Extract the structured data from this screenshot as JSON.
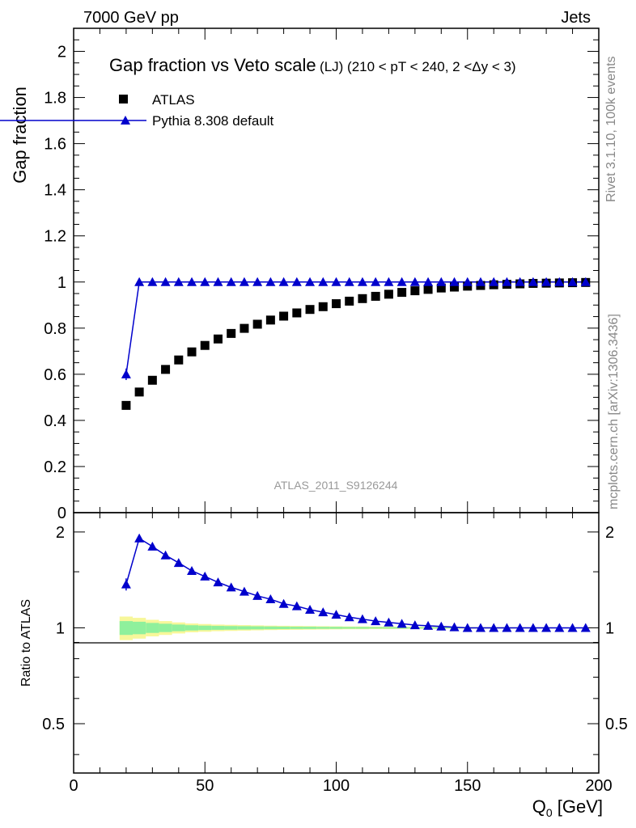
{
  "header": {
    "energy": "7000 GeV pp",
    "process": "Jets"
  },
  "side_labels": {
    "rivet": "Rivet 3.1.10,  100k events",
    "mcplots": "mcplots.cern.ch [arXiv:1306.3436]"
  },
  "chart_data": [
    {
      "type": "scatter",
      "title": "Gap fraction vs Veto scale",
      "subtitle": "(LJ) (210 < pT < 240, 2 <Δy < 3)",
      "analysis_label": "ATLAS_2011_S9126244",
      "ylabel": "Gap fraction",
      "xlim": [
        0,
        200
      ],
      "ylim": [
        0,
        2.1
      ],
      "y_ticks": [
        "0",
        "0.2",
        "0.4",
        "0.6",
        "0.8",
        "1",
        "1.2",
        "1.4",
        "1.6",
        "1.8",
        "2"
      ],
      "legend_position": "top-left",
      "colors": {
        "data": "#000000",
        "mc": "#0000cc"
      },
      "series": [
        {
          "name": "ATLAS",
          "marker": "square",
          "x": [
            20,
            25,
            30,
            35,
            40,
            45,
            50,
            55,
            60,
            65,
            70,
            75,
            80,
            85,
            90,
            95,
            100,
            105,
            110,
            115,
            120,
            125,
            130,
            135,
            140,
            145,
            150,
            155,
            160,
            165,
            170,
            175,
            180,
            185,
            190,
            195
          ],
          "y": [
            0.465,
            0.523,
            0.574,
            0.621,
            0.662,
            0.697,
            0.725,
            0.753,
            0.777,
            0.799,
            0.817,
            0.835,
            0.852,
            0.866,
            0.881,
            0.893,
            0.906,
            0.917,
            0.928,
            0.938,
            0.947,
            0.955,
            0.962,
            0.968,
            0.974,
            0.978,
            0.982,
            0.985,
            0.988,
            0.99,
            0.992,
            0.994,
            0.995,
            0.996,
            0.997,
            0.998
          ]
        },
        {
          "name": "Pythia 8.308 default",
          "marker": "triangle",
          "x": [
            20,
            25,
            30,
            35,
            40,
            45,
            50,
            55,
            60,
            65,
            70,
            75,
            80,
            85,
            90,
            95,
            100,
            105,
            110,
            115,
            120,
            125,
            130,
            135,
            140,
            145,
            150,
            155,
            160,
            165,
            170,
            175,
            180,
            185,
            190,
            195
          ],
          "y": [
            0.6,
            1.0,
            1.0,
            1.0,
            1.0,
            1.0,
            1.0,
            1.0,
            1.0,
            1.0,
            1.0,
            1.0,
            1.0,
            1.0,
            1.0,
            1.0,
            1.0,
            1.0,
            1.0,
            1.0,
            1.0,
            1.0,
            1.0,
            1.0,
            1.0,
            1.0,
            1.0,
            1.0,
            1.0,
            1.0,
            1.0,
            1.0,
            1.0,
            1.0,
            1.0,
            1.0
          ],
          "err": [
            0.025,
            0,
            0,
            0,
            0,
            0,
            0,
            0,
            0,
            0,
            0,
            0,
            0,
            0,
            0,
            0,
            0,
            0,
            0,
            0,
            0,
            0,
            0,
            0,
            0,
            0,
            0,
            0,
            0,
            0,
            0,
            0,
            0,
            0,
            0,
            0
          ]
        }
      ]
    },
    {
      "type": "line",
      "ylabel": "Ratio to ATLAS",
      "xlabel": "Q",
      "xlabel_sub": "0",
      "xlabel_unit": " [GeV]",
      "xlim": [
        0,
        200
      ],
      "ylim": [
        0.35,
        2.3
      ],
      "x_ticks": [
        "0",
        "50",
        "100",
        "150",
        "200"
      ],
      "y_ticks": [
        "0.5",
        "1",
        "2"
      ],
      "band": {
        "x_edges": [
          17.5,
          22.5,
          27.5,
          32.5,
          37.5,
          42.5,
          47.5,
          52.5,
          57.5,
          62.5,
          67.5,
          72.5,
          77.5,
          82.5,
          87.5,
          92.5,
          97.5,
          102.5,
          107.5,
          112.5,
          117.5,
          122.5,
          127.5,
          132.5,
          137.5,
          142.5,
          147.5,
          152.5,
          157.5,
          162.5,
          167.5,
          172.5,
          177.5,
          182.5,
          187.5,
          192.5,
          197.5
        ],
        "outer_rel": [
          0.085,
          0.075,
          0.06,
          0.05,
          0.04,
          0.032,
          0.028,
          0.024,
          0.022,
          0.02,
          0.018,
          0.016,
          0.015,
          0.014,
          0.013,
          0.012,
          0.011,
          0.01,
          0.01,
          0.009,
          0.009,
          0.008,
          0.008,
          0.007,
          0.007,
          0.006,
          0.006,
          0.005,
          0.005,
          0.005,
          0.004,
          0.004,
          0.004,
          0.003,
          0.003,
          0.003
        ],
        "inner_rel": [
          0.05,
          0.045,
          0.036,
          0.03,
          0.024,
          0.019,
          0.016,
          0.014,
          0.013,
          0.012,
          0.011,
          0.01,
          0.009,
          0.008,
          0.008,
          0.007,
          0.007,
          0.006,
          0.006,
          0.005,
          0.005,
          0.005,
          0.004,
          0.004,
          0.004,
          0.004,
          0.003,
          0.003,
          0.003,
          0.003,
          0.002,
          0.002,
          0.002,
          0.002,
          0.002,
          0.002
        ],
        "outer_color": "#f7f79a",
        "inner_color": "#8ff09c"
      },
      "series": [
        {
          "name": "Pythia 8.308 default",
          "x": [
            20,
            25,
            30,
            35,
            40,
            45,
            50,
            55,
            60,
            65,
            70,
            75,
            80,
            85,
            90,
            95,
            100,
            105,
            110,
            115,
            120,
            125,
            130,
            135,
            140,
            145,
            150,
            155,
            160,
            165,
            170,
            175,
            180,
            185,
            190,
            195
          ],
          "y": [
            1.37,
            1.91,
            1.8,
            1.69,
            1.6,
            1.51,
            1.45,
            1.39,
            1.34,
            1.3,
            1.26,
            1.23,
            1.19,
            1.17,
            1.14,
            1.12,
            1.1,
            1.08,
            1.065,
            1.05,
            1.04,
            1.03,
            1.02,
            1.015,
            1.01,
            1.005,
            1.0,
            1.0,
            1.0,
            1.0,
            1.0,
            1.0,
            1.0,
            1.0,
            1.0,
            1.0
          ],
          "err": [
            0.06,
            0,
            0,
            0,
            0,
            0,
            0,
            0,
            0,
            0,
            0,
            0,
            0,
            0,
            0,
            0,
            0,
            0,
            0,
            0,
            0,
            0,
            0,
            0,
            0,
            0,
            0,
            0,
            0,
            0,
            0,
            0,
            0,
            0,
            0,
            0
          ]
        }
      ]
    }
  ]
}
